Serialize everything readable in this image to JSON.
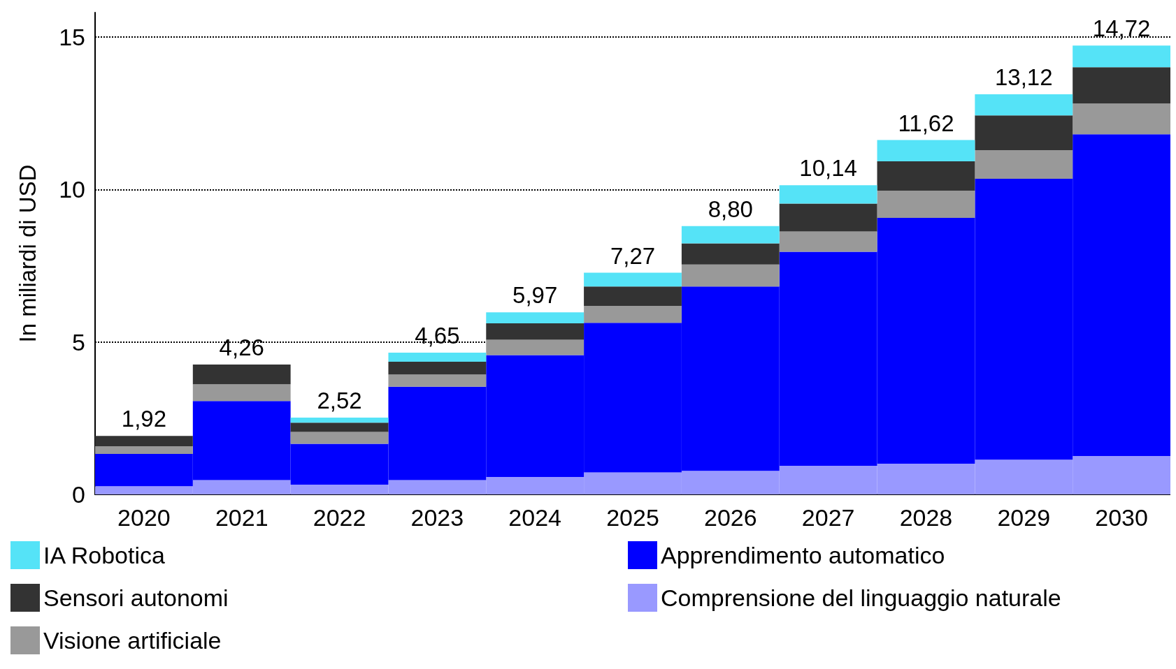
{
  "chart_data": {
    "type": "bar",
    "stacked": true,
    "ylabel": "In miliardi di USD",
    "categories": [
      "2020",
      "2021",
      "2022",
      "2023",
      "2024",
      "2025",
      "2026",
      "2027",
      "2028",
      "2029",
      "2030"
    ],
    "series": [
      {
        "name": "Comprensione del linguaggio naturale",
        "color": "#9999ff",
        "values": [
          0.27,
          0.47,
          0.32,
          0.47,
          0.57,
          0.72,
          0.77,
          0.94,
          1.01,
          1.14,
          1.26
        ]
      },
      {
        "name": "Apprendimento automatico",
        "color": "#0000ff",
        "values": [
          1.06,
          2.59,
          1.34,
          3.06,
          4.0,
          4.91,
          6.05,
          7.02,
          8.06,
          9.21,
          10.55
        ]
      },
      {
        "name": "Visione artificiale",
        "color": "#999999",
        "values": [
          0.25,
          0.55,
          0.39,
          0.4,
          0.5,
          0.55,
          0.72,
          0.66,
          0.89,
          0.94,
          1.01
        ]
      },
      {
        "name": "Sensori autonomi",
        "color": "#333333",
        "values": [
          0.34,
          0.65,
          0.3,
          0.42,
          0.54,
          0.64,
          0.69,
          0.92,
          0.96,
          1.14,
          1.19
        ]
      },
      {
        "name": "IA Robotica",
        "color": "#55e3f7",
        "values": [
          0,
          0,
          0.17,
          0.3,
          0.36,
          0.45,
          0.57,
          0.6,
          0.7,
          0.69,
          0.71
        ]
      }
    ],
    "totals": [
      "1,92",
      "4,26",
      "2,52",
      "4,65",
      "5,97",
      "7,27",
      "8,80",
      "10,14",
      "11,62",
      "13,12",
      "14,72"
    ],
    "ylim": [
      0,
      15.8
    ],
    "yticks": [
      0,
      5,
      10,
      15
    ],
    "grid": "y",
    "legend": "bottom"
  }
}
